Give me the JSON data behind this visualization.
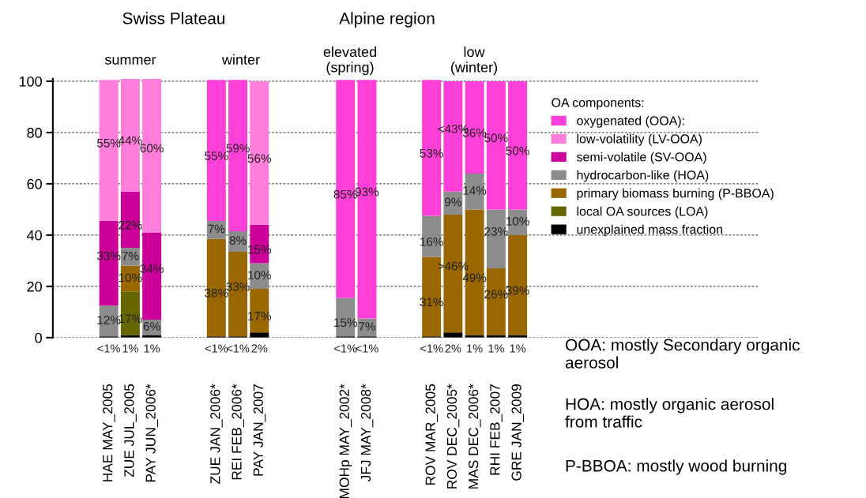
{
  "chart_data": {
    "type": "bar",
    "stacked": true,
    "categories": [
      "HAE MAY_2005",
      "ZUE JUL_2005",
      "PAY JUN_2006*",
      null,
      null,
      "ZUE JAN_2006*",
      "REI FEB_2006*",
      "PAY JAN_2007",
      null,
      null,
      null,
      "MOHp MAY_2002*",
      "JFJ MAY_2008*",
      null,
      null,
      "ROV MAR_2005",
      "ROV DEC_2005*",
      "MAS DEC_2006*",
      "RHI FEB_2007",
      "GRE JAN_2009"
    ],
    "series": [
      {
        "name": "unexplained mass fraction",
        "color": "#000000",
        "values": [
          0.5,
          1,
          1,
          null,
          null,
          0.5,
          0.5,
          2,
          null,
          null,
          null,
          0.5,
          0.5,
          null,
          null,
          0.5,
          2,
          1,
          1,
          1
        ],
        "value_labels": [
          "<1%",
          "1%",
          "1%",
          null,
          null,
          "<1%",
          "<1%",
          "2%",
          null,
          null,
          null,
          "<1%",
          "<1%",
          null,
          null,
          "<1%",
          "2%",
          "1%",
          "1%",
          "1%"
        ]
      },
      {
        "name": "local OA sources (LOA)",
        "color": "#666600",
        "values": [
          null,
          17,
          null,
          null,
          null,
          null,
          null,
          null,
          null,
          null,
          null,
          null,
          null,
          null,
          null,
          null,
          null,
          null,
          null,
          null
        ],
        "value_labels": [
          null,
          "17%",
          null,
          null,
          null,
          null,
          null,
          null,
          null,
          null,
          null,
          null,
          null,
          null,
          null,
          null,
          null,
          null,
          null,
          null
        ]
      },
      {
        "name": "primary biomass burning (P-BBOA)",
        "color": "#996600",
        "values": [
          null,
          10,
          null,
          null,
          null,
          38,
          33,
          17,
          null,
          null,
          null,
          null,
          null,
          null,
          null,
          31,
          46,
          49,
          26,
          39
        ],
        "value_labels": [
          null,
          "10%",
          null,
          null,
          null,
          "38%",
          "33%",
          "17%",
          null,
          null,
          null,
          null,
          null,
          null,
          null,
          "31%",
          ">46%",
          "49%",
          "26%",
          "39%"
        ]
      },
      {
        "name": "hydrocarbon-like (HOA)",
        "color": "#8c8c8c",
        "values": [
          12,
          7,
          6,
          null,
          null,
          7,
          8,
          10,
          null,
          null,
          null,
          15,
          7,
          null,
          null,
          16,
          9,
          14,
          23,
          10
        ],
        "value_labels": [
          "12%",
          "7%",
          "6%",
          null,
          null,
          "7%",
          "8%",
          "10%",
          null,
          null,
          null,
          "15%",
          "7%",
          null,
          null,
          "16%",
          "9%",
          "14%",
          "23%",
          "10%"
        ]
      },
      {
        "name": "semi-volatile (SV-OOA)",
        "color": "#cc0099",
        "values": [
          33,
          22,
          34,
          null,
          null,
          null,
          null,
          15,
          null,
          null,
          null,
          null,
          null,
          null,
          null,
          null,
          null,
          null,
          null,
          null
        ],
        "value_labels": [
          "33%",
          "22%",
          "34%",
          null,
          null,
          null,
          null,
          "15%",
          null,
          null,
          null,
          null,
          null,
          null,
          null,
          null,
          null,
          null,
          null,
          null
        ]
      },
      {
        "name": "low-volatility (LV-OOA)",
        "color": "#ff7ddb",
        "values": [
          55,
          44,
          60,
          null,
          null,
          null,
          null,
          56,
          null,
          null,
          null,
          null,
          null,
          null,
          null,
          null,
          null,
          null,
          null,
          null
        ],
        "value_labels": [
          "55%",
          "44%",
          "60%",
          null,
          null,
          null,
          null,
          "56%",
          null,
          null,
          null,
          null,
          null,
          null,
          null,
          null,
          null,
          null,
          null,
          null
        ]
      },
      {
        "name": "oxygenated (OOA):",
        "color": "#ff40d8",
        "values": [
          null,
          null,
          null,
          null,
          null,
          55,
          59,
          null,
          null,
          null,
          null,
          85,
          93,
          null,
          null,
          53,
          43,
          36,
          50,
          50
        ],
        "value_labels": [
          null,
          null,
          null,
          null,
          null,
          "55%",
          "59%",
          null,
          null,
          null,
          null,
          "85%",
          "93%",
          null,
          null,
          "53%",
          "<43%",
          "36%",
          "50%",
          "50%"
        ]
      }
    ],
    "ylim": [
      0,
      101
    ],
    "yticks": [
      0,
      20,
      40,
      60,
      80,
      100
    ],
    "grid": "y",
    "legend": "top right",
    "legend_title": "OA components:",
    "annotations": [
      "Swiss Plateau",
      "Alpine region",
      "summer",
      "winter",
      "elevated\n(spring)",
      "low\n(winter)",
      "OOA: mostly Secondary organic\naerosol",
      "HOA: mostly organic aerosol\nfrom traffic",
      "P-BBOA: mostly wood burning"
    ]
  }
}
